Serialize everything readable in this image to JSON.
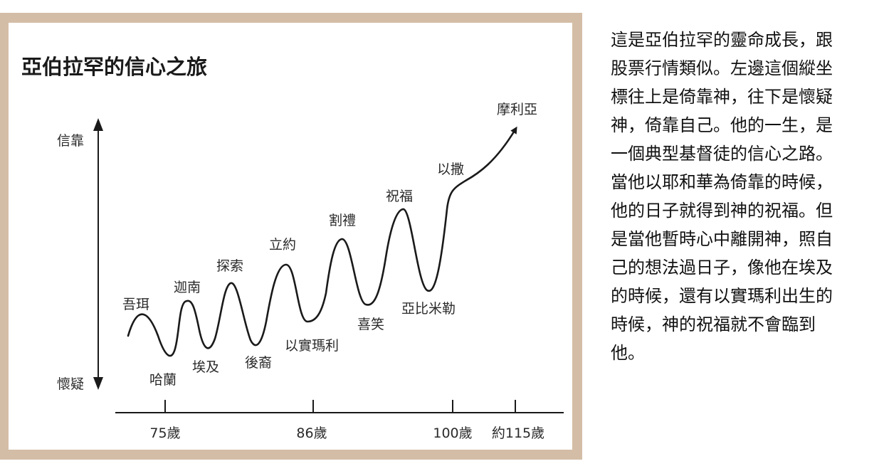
{
  "figure": {
    "title": "亞伯拉罕的信心之旅",
    "y_axis": {
      "top_label": "信靠",
      "bottom_label": "懷疑"
    },
    "x_ticks": [
      "75歲",
      "86歲",
      "100歲",
      "約115歲"
    ],
    "events": [
      "吾珥",
      "哈蘭",
      "迦南",
      "埃及",
      "探索",
      "後裔",
      "立約",
      "以實瑪利",
      "割禮",
      "喜笑",
      "祝福",
      "亞比米勒",
      "以撒",
      "摩利亞"
    ]
  },
  "article": {
    "lines": [
      "這是亞伯拉罕的靈命成長，跟",
      "股票行情類似。左邊這個縱坐",
      "標往上是倚靠神，往下是懷疑",
      "神，倚靠自己。他的一生，是",
      "一個典型基督徒的信心之路。",
      "當他以耶和華為倚靠的時候，",
      "他的日子就得到神的祝福。但",
      "是當他暫時心中離開神，照自",
      "己的想法過日子，像他在埃及",
      "的時候，還有以實瑪利出生的",
      "時候，神的祝福就不會臨到",
      "他。"
    ]
  }
}
